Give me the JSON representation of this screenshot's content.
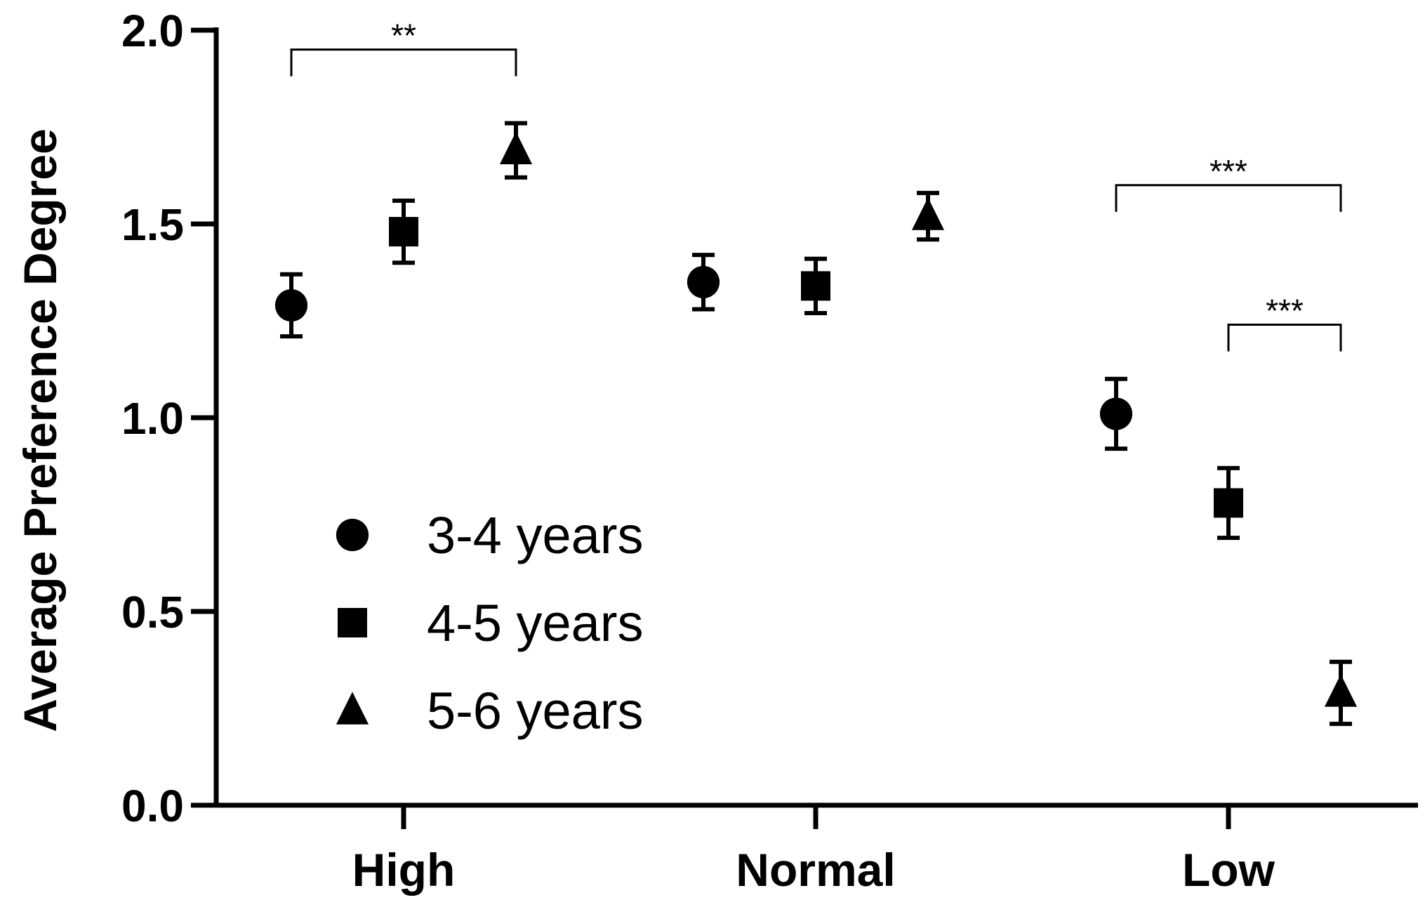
{
  "chart_data": {
    "type": "scatter",
    "ylabel": "Average Preference Degree",
    "ylim": [
      0,
      2
    ],
    "yticks": [
      "0.0",
      "0.5",
      "1.0",
      "1.5",
      "2.0"
    ],
    "categories": [
      "High",
      "Normal",
      "Low"
    ],
    "series": [
      {
        "name": "3-4 years",
        "marker": "circle",
        "values": [
          1.29,
          1.35,
          1.01
        ],
        "errors": [
          0.08,
          0.07,
          0.09
        ]
      },
      {
        "name": "4-5 years",
        "marker": "square",
        "values": [
          1.48,
          1.34,
          0.78
        ],
        "errors": [
          0.08,
          0.07,
          0.09
        ]
      },
      {
        "name": "5-6 years",
        "marker": "triangle",
        "values": [
          1.69,
          1.52,
          0.29
        ],
        "errors": [
          0.07,
          0.06,
          0.08
        ]
      }
    ],
    "legend_position": "lower-left",
    "color": "#000000",
    "significance": [
      {
        "category": 0,
        "from_series": 0,
        "to_series": 2,
        "label": "**",
        "y": 1.95
      },
      {
        "category": 2,
        "from_series": 0,
        "to_series": 2,
        "label": "***",
        "y": 1.6
      },
      {
        "category": 2,
        "from_series": 1,
        "to_series": 2,
        "label": "***",
        "y": 1.24
      }
    ]
  }
}
